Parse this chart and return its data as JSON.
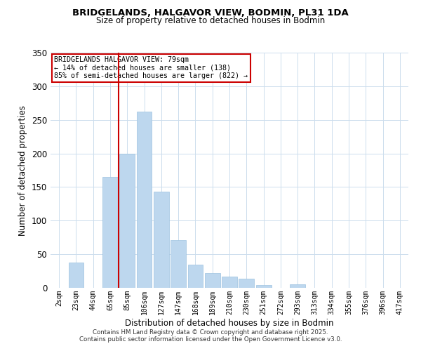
{
  "title": "BRIDGELANDS, HALGAVOR VIEW, BODMIN, PL31 1DA",
  "subtitle": "Size of property relative to detached houses in Bodmin",
  "xlabel": "Distribution of detached houses by size in Bodmin",
  "ylabel": "Number of detached properties",
  "bar_labels": [
    "2sqm",
    "23sqm",
    "44sqm",
    "65sqm",
    "85sqm",
    "106sqm",
    "127sqm",
    "147sqm",
    "168sqm",
    "189sqm",
    "210sqm",
    "230sqm",
    "251sqm",
    "272sqm",
    "293sqm",
    "313sqm",
    "334sqm",
    "355sqm",
    "376sqm",
    "396sqm",
    "417sqm"
  ],
  "bar_values": [
    0,
    38,
    0,
    165,
    200,
    262,
    143,
    71,
    34,
    22,
    17,
    14,
    4,
    0,
    5,
    0,
    0,
    0,
    0,
    0,
    0
  ],
  "bar_color": "#bdd7ee",
  "bar_edge_color": "#9dc3e0",
  "vline_x_index": 4,
  "vline_color": "#cc0000",
  "ylim": [
    0,
    350
  ],
  "yticks": [
    0,
    50,
    100,
    150,
    200,
    250,
    300,
    350
  ],
  "annotation_title": "BRIDGELANDS HALGAVOR VIEW: 79sqm",
  "annotation_line1": "← 14% of detached houses are smaller (138)",
  "annotation_line2": "85% of semi-detached houses are larger (822) →",
  "annotation_box_color": "#ffffff",
  "annotation_box_edge": "#cc0000",
  "footer_line1": "Contains HM Land Registry data © Crown copyright and database right 2025.",
  "footer_line2": "Contains public sector information licensed under the Open Government Licence v3.0.",
  "background_color": "#ffffff",
  "grid_color": "#ccdded"
}
